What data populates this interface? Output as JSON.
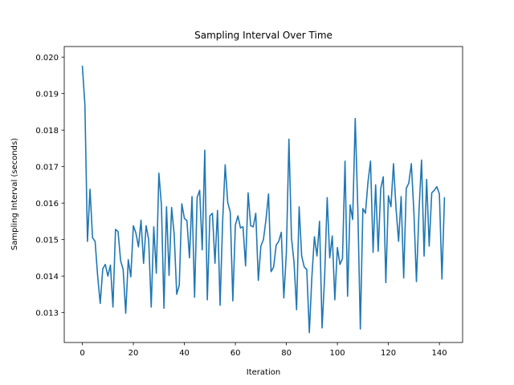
{
  "chart_data": {
    "type": "line",
    "title": "Sampling Interval Over Time",
    "xlabel": "Iteration",
    "ylabel": "Sampling Interval (seconds)",
    "xlim": [
      -7.1,
      149.1
    ],
    "ylim": [
      0.01218,
      0.02029
    ],
    "xticks": [
      0,
      20,
      40,
      60,
      80,
      100,
      120,
      140
    ],
    "yticks": [
      0.013,
      0.014,
      0.015,
      0.016,
      0.017,
      0.018,
      0.019,
      0.02
    ],
    "xtick_labels": [
      "0",
      "20",
      "40",
      "60",
      "80",
      "100",
      "120",
      "140"
    ],
    "ytick_labels": [
      "0.013",
      "0.014",
      "0.015",
      "0.016",
      "0.017",
      "0.018",
      "0.019",
      "0.020"
    ],
    "grid": false,
    "line_color": "#1f77b4",
    "series": [
      {
        "values": [
          0.01975,
          0.0187,
          0.01495,
          0.01638,
          0.01505,
          0.01495,
          0.014,
          0.01325,
          0.0142,
          0.01432,
          0.014,
          0.0143,
          0.01315,
          0.01528,
          0.01522,
          0.01442,
          0.01418,
          0.01298,
          0.01445,
          0.01398,
          0.01538,
          0.01518,
          0.0148,
          0.01553,
          0.01435,
          0.01538,
          0.015,
          0.01315,
          0.01535,
          0.01408,
          0.01682,
          0.01595,
          0.01312,
          0.0159,
          0.01402,
          0.01588,
          0.01515,
          0.0135,
          0.01375,
          0.01598,
          0.01558,
          0.01552,
          0.0145,
          0.01618,
          0.01342,
          0.01615,
          0.01635,
          0.01472,
          0.01745,
          0.01335,
          0.01565,
          0.01572,
          0.01435,
          0.0158,
          0.0132,
          0.01548,
          0.01705,
          0.01602,
          0.01575,
          0.01332,
          0.0154,
          0.01565,
          0.01532,
          0.01535,
          0.01428,
          0.01628,
          0.01538,
          0.01535,
          0.01572,
          0.01388,
          0.01482,
          0.015,
          0.01555,
          0.01625,
          0.01412,
          0.01425,
          0.01485,
          0.01495,
          0.0152,
          0.0134,
          0.01465,
          0.01775,
          0.01505,
          0.01438,
          0.01308,
          0.0159,
          0.01455,
          0.01425,
          0.01418,
          0.01245,
          0.01398,
          0.01508,
          0.01455,
          0.0155,
          0.01258,
          0.01398,
          0.01615,
          0.0145,
          0.0151,
          0.01335,
          0.01478,
          0.01432,
          0.01448,
          0.01715,
          0.01345,
          0.01595,
          0.01555,
          0.01832,
          0.01588,
          0.01255,
          0.01585,
          0.01572,
          0.01658,
          0.01715,
          0.01465,
          0.0165,
          0.01468,
          0.0164,
          0.01672,
          0.01382,
          0.0162,
          0.0159,
          0.01708,
          0.01585,
          0.01495,
          0.01618,
          0.01395,
          0.0164,
          0.01655,
          0.01708,
          0.01575,
          0.01385,
          0.01578,
          0.01718,
          0.01455,
          0.01665,
          0.01482,
          0.01628,
          0.01635,
          0.01645,
          0.01625,
          0.01392,
          0.01615
        ]
      }
    ]
  }
}
